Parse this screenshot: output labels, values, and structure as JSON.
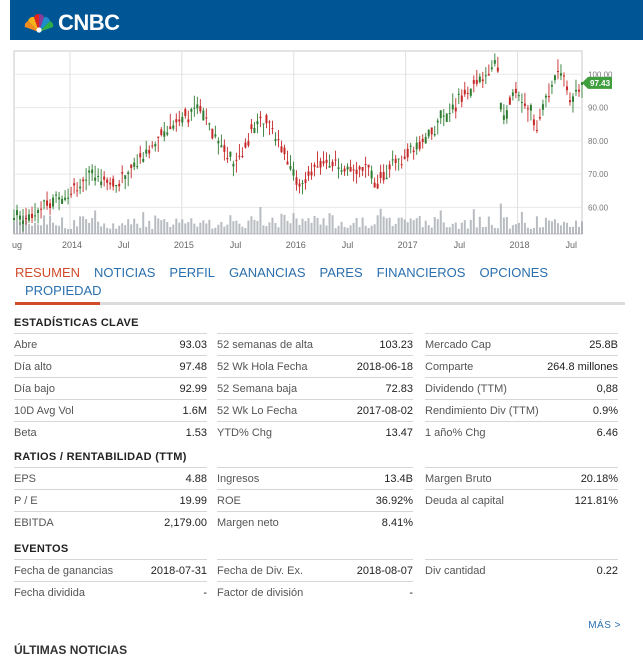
{
  "brand": {
    "name": "CNBC"
  },
  "chart_data": {
    "type": "line",
    "x_tick_labels": [
      "ug",
      "2014",
      "Jul",
      "2015",
      "Jul",
      "2016",
      "Jul",
      "2017",
      "Jul",
      "2018",
      "Jul"
    ],
    "y_tick_labels": [
      "100.00",
      "90.00",
      "80.00",
      "70.00",
      "60.00"
    ],
    "ylim": [
      52,
      107
    ],
    "last_price_label": "97.43",
    "x_points": [
      0,
      0.03,
      0.06,
      0.09,
      0.12,
      0.15,
      0.18,
      0.21,
      0.24,
      0.27,
      0.3,
      0.33,
      0.36,
      0.39,
      0.42,
      0.45,
      0.48,
      0.5,
      0.52,
      0.55,
      0.58,
      0.61,
      0.64,
      0.67,
      0.7,
      0.73,
      0.76,
      0.79,
      0.82,
      0.85,
      0.86,
      0.88,
      0.9,
      0.92,
      0.94,
      0.96,
      0.98,
      1.0
    ],
    "values": [
      57,
      58,
      61,
      64,
      68,
      70,
      66,
      72,
      78,
      84,
      88,
      90,
      80,
      72,
      84,
      86,
      76,
      66,
      70,
      75,
      70,
      72,
      68,
      73,
      76,
      82,
      88,
      93,
      98,
      104,
      86,
      94,
      92,
      84,
      94,
      103,
      92,
      97
    ],
    "grid": true
  },
  "tabs": [
    {
      "label": "RESUMEN",
      "active": true
    },
    {
      "label": "NOTICIAS"
    },
    {
      "label": "PERFIL"
    },
    {
      "label": "GANANCIAS"
    },
    {
      "label": "PARES"
    },
    {
      "label": "FINANCIEROS"
    },
    {
      "label": "OPCIONES"
    },
    {
      "label": "PROPIEDAD"
    }
  ],
  "key_stats": {
    "title": "ESTADÍSTICAS CLAVE",
    "rows": [
      [
        {
          "l": "Abre",
          "v": "93.03"
        },
        {
          "l": "52 semanas de alta",
          "v": "103.23"
        },
        {
          "l": "Mercado Cap",
          "v": "25.8B"
        }
      ],
      [
        {
          "l": "Día alto",
          "v": "97.48"
        },
        {
          "l": "52 Wk Hola Fecha",
          "v": "2018-06-18"
        },
        {
          "l": "Comparte",
          "v": "264.8 millones"
        }
      ],
      [
        {
          "l": "Día bajo",
          "v": "92.99"
        },
        {
          "l": "52 Semana baja",
          "v": "72.83"
        },
        {
          "l": "Dividendo (TTM)",
          "v": "0,88"
        }
      ],
      [
        {
          "l": "10D Avg Vol",
          "v": "1.6M"
        },
        {
          "l": "52 Wk Lo Fecha",
          "v": "2017-08-02"
        },
        {
          "l": "Rendimiento Div (TTM)",
          "v": "0.9%"
        }
      ],
      [
        {
          "l": "Beta",
          "v": "1.53"
        },
        {
          "l": "YTD% Chg",
          "v": "13.47"
        },
        {
          "l": "1 año% Chg",
          "v": "6.46"
        }
      ]
    ]
  },
  "ratios": {
    "title": "RATIOS / RENTABILIDAD (TTM)",
    "rows": [
      [
        {
          "l": "EPS",
          "v": "4.88"
        },
        {
          "l": "Ingresos",
          "v": "13.4B"
        },
        {
          "l": "Margen Bruto",
          "v": "20.18%"
        }
      ],
      [
        {
          "l": "P / E",
          "v": "19.99"
        },
        {
          "l": "ROE",
          "v": "36.92%"
        },
        {
          "l": "Deuda al capital",
          "v": "121.81%"
        }
      ],
      [
        {
          "l": "EBITDA",
          "v": "2,179.00"
        },
        {
          "l": "Margen neto",
          "v": "8.41%"
        },
        {
          "l": "",
          "v": ""
        }
      ]
    ]
  },
  "events": {
    "title": "EVENTOS",
    "rows": [
      [
        {
          "l": "Fecha de ganancias",
          "v": "2018-07-31"
        },
        {
          "l": "Fecha de Div. Ex.",
          "v": "2018-08-07"
        },
        {
          "l": "Div cantidad",
          "v": "0.22"
        }
      ],
      [
        {
          "l": "Fecha dividida",
          "v": "-"
        },
        {
          "l": "Factor de división",
          "v": "-"
        },
        {
          "l": "",
          "v": ""
        }
      ]
    ]
  },
  "more_link": "MÁS >",
  "next_section_title": "ÚLTIMAS NOTICIAS"
}
